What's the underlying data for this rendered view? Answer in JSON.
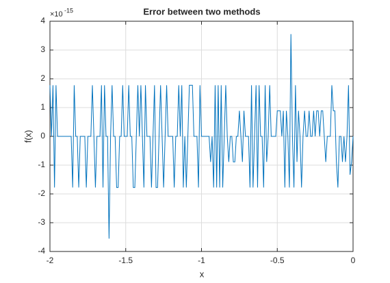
{
  "chart_data": {
    "type": "line",
    "title": "Error between two methods",
    "xlabel": "x",
    "ylabel": "f(x)",
    "y_multiplier": {
      "base": "×10",
      "exponent": "-15"
    },
    "xlim": [
      -2,
      0
    ],
    "ylim": [
      -4,
      4
    ],
    "xticks": [
      -2,
      -1.5,
      -1,
      -0.5,
      0
    ],
    "yticks": [
      -4,
      -3,
      -2,
      -1,
      0,
      1,
      2,
      3,
      4
    ],
    "grid": true,
    "x": [
      -2,
      -1.99,
      -1.98,
      -1.97,
      -1.96,
      -1.95,
      -1.94,
      -1.93,
      -1.92,
      -1.91,
      -1.9,
      -1.89,
      -1.88,
      -1.87,
      -1.86,
      -1.85,
      -1.84,
      -1.83,
      -1.82,
      -1.81,
      -1.8,
      -1.79,
      -1.78,
      -1.77,
      -1.76,
      -1.75,
      -1.74,
      -1.73,
      -1.72,
      -1.71,
      -1.7,
      -1.69,
      -1.68,
      -1.67,
      -1.66,
      -1.65,
      -1.64,
      -1.63,
      -1.62,
      -1.61,
      -1.6,
      -1.59,
      -1.58,
      -1.57,
      -1.56,
      -1.55,
      -1.54,
      -1.53,
      -1.52,
      -1.51,
      -1.5,
      -1.49,
      -1.48,
      -1.47,
      -1.46,
      -1.45,
      -1.44,
      -1.43,
      -1.42,
      -1.41,
      -1.4,
      -1.39,
      -1.38,
      -1.37,
      -1.36,
      -1.35,
      -1.34,
      -1.33,
      -1.32,
      -1.31,
      -1.3,
      -1.29,
      -1.28,
      -1.27,
      -1.26,
      -1.25,
      -1.24,
      -1.23,
      -1.22,
      -1.21,
      -1.2,
      -1.19,
      -1.18,
      -1.17,
      -1.16,
      -1.15,
      -1.14,
      -1.13,
      -1.12,
      -1.11,
      -1.1,
      -1.09,
      -1.08,
      -1.07,
      -1.06,
      -1.05,
      -1.04,
      -1.03,
      -1.02,
      -1.01,
      -1,
      -0.99,
      -0.98,
      -0.97,
      -0.96,
      -0.95,
      -0.94,
      -0.93,
      -0.92,
      -0.91,
      -0.9,
      -0.89,
      -0.88,
      -0.87,
      -0.86,
      -0.85,
      -0.84,
      -0.83,
      -0.82,
      -0.81,
      -0.8,
      -0.79,
      -0.78,
      -0.77,
      -0.76,
      -0.75,
      -0.74,
      -0.73,
      -0.72,
      -0.71,
      -0.7,
      -0.69,
      -0.68,
      -0.67,
      -0.66,
      -0.65,
      -0.64,
      -0.63,
      -0.62,
      -0.61,
      -0.6,
      -0.59,
      -0.58,
      -0.57,
      -0.56,
      -0.55,
      -0.54,
      -0.53,
      -0.52,
      -0.51,
      -0.5,
      -0.49,
      -0.48,
      -0.47,
      -0.46,
      -0.45,
      -0.44,
      -0.43,
      -0.42,
      -0.41,
      -0.4,
      -0.39,
      -0.38,
      -0.37,
      -0.36,
      -0.35,
      -0.34,
      -0.33,
      -0.32,
      -0.31,
      -0.3,
      -0.29,
      -0.28,
      -0.27,
      -0.26,
      -0.25,
      -0.24,
      -0.23,
      -0.22,
      -0.21,
      -0.2,
      -0.19,
      -0.18,
      -0.17,
      -0.16,
      -0.15,
      -0.14,
      -0.13,
      -0.12,
      -0.11,
      -0.1,
      -0.09,
      -0.08,
      -0.07,
      -0.06,
      -0.05,
      -0.04,
      -0.03,
      -0.02,
      -0.01,
      0
    ],
    "series": [
      {
        "color": "#0072bd",
        "values": [
          1.776,
          0,
          1.776,
          -1.776,
          1.776,
          0,
          0,
          0,
          0,
          0,
          0,
          0,
          0,
          0,
          0,
          -1.776,
          1.776,
          0,
          0,
          -1.776,
          0,
          0,
          0,
          0,
          -1.776,
          0,
          0,
          0,
          1.776,
          0,
          -1.776,
          0,
          0,
          0,
          1.776,
          -1.776,
          1.776,
          0,
          0,
          -3.553,
          0,
          1.776,
          0,
          0,
          -1.776,
          -1.776,
          0,
          0,
          1.776,
          0,
          0,
          0,
          1.776,
          0,
          0,
          -1.776,
          -1.776,
          0,
          1.776,
          0,
          1.776,
          0,
          -1.776,
          1.776,
          0,
          0,
          0,
          -1.776,
          0,
          1.776,
          -1.776,
          -1.776,
          0,
          1.776,
          0,
          -1.776,
          0,
          1.776,
          0,
          0,
          0,
          0,
          -1.776,
          0,
          0,
          1.776,
          0,
          1.776,
          -1.776,
          0,
          -1.776,
          0,
          1.776,
          1.776,
          1.776,
          0,
          0,
          0,
          -1.776,
          1.776,
          0,
          0,
          0,
          0,
          0,
          0,
          -0.888,
          0,
          -1.776,
          1.776,
          -1.776,
          1.776,
          -1.776,
          1.776,
          -1.776,
          0,
          1.776,
          0,
          -0.888,
          0,
          0,
          -0.888,
          -0.888,
          0,
          0,
          0.888,
          0,
          -0.888,
          0.888,
          0,
          0,
          0,
          -1.776,
          1.776,
          -1.776,
          0,
          1.776,
          -1.776,
          1.776,
          0,
          0,
          -1.776,
          1.776,
          -0.888,
          0,
          1.776,
          0,
          0,
          0,
          0,
          0.888,
          0.888,
          0.888,
          0,
          0.888,
          -1.776,
          0.888,
          0,
          -1.776,
          3.553,
          0,
          -1.776,
          1.776,
          -0.888,
          0.888,
          0,
          -1.776,
          0,
          0.888,
          0,
          0,
          0.888,
          0,
          0,
          0.888,
          0,
          0.888,
          0.888,
          0,
          0.888,
          0.888,
          0,
          -0.888,
          0,
          0,
          0,
          1.776,
          0.888,
          0.888,
          -0.888,
          -1.776,
          0,
          0,
          -0.888,
          0,
          -0.888,
          0,
          1.776,
          -1.332,
          -0.888,
          0
        ]
      }
    ]
  }
}
